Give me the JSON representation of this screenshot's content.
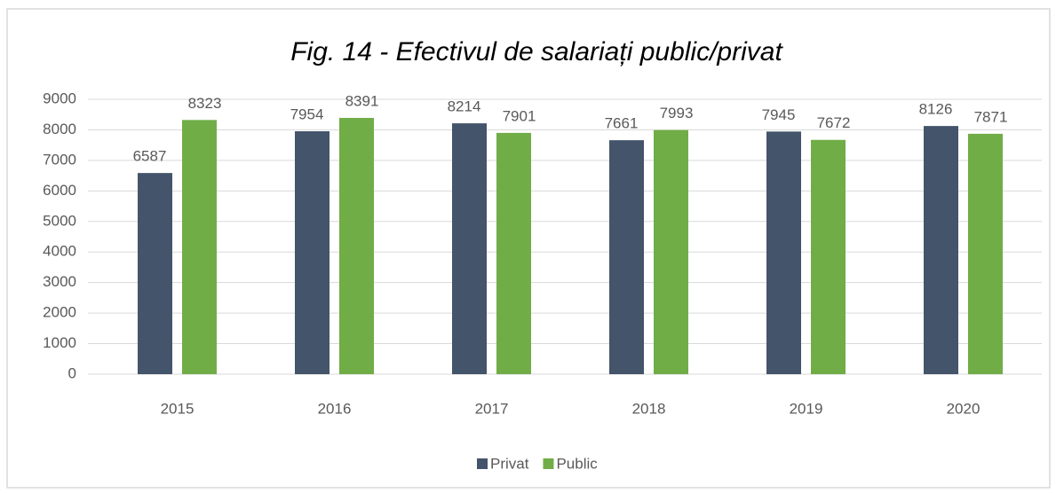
{
  "chart_data": {
    "type": "bar",
    "title": "Fig. 14 - Efectivul de salariați public/privat",
    "categories": [
      "2015",
      "2016",
      "2017",
      "2018",
      "2019",
      "2020"
    ],
    "series": [
      {
        "name": "Privat",
        "color": "#44546a",
        "values": [
          6587,
          7954,
          8214,
          7661,
          7945,
          8126
        ]
      },
      {
        "name": "Public",
        "color": "#70ad47",
        "values": [
          8323,
          8391,
          7901,
          7993,
          7672,
          7871
        ]
      }
    ],
    "ylim": [
      0,
      9000
    ],
    "yticks": [
      0,
      1000,
      2000,
      3000,
      4000,
      5000,
      6000,
      7000,
      8000,
      9000
    ],
    "grid": true,
    "legend": "bottom"
  }
}
